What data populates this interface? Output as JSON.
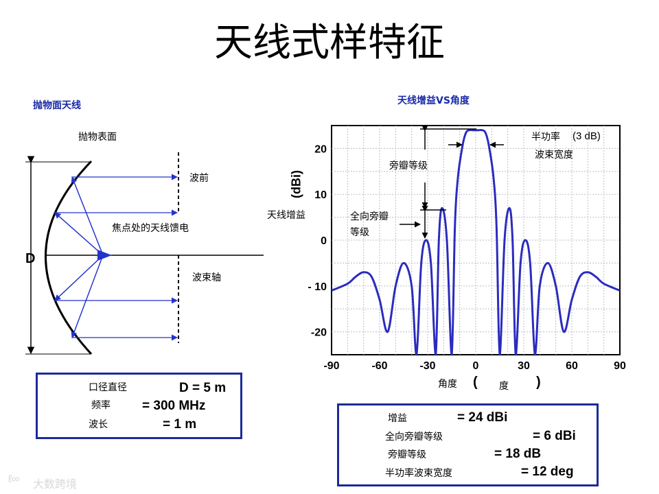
{
  "slide": {
    "title": "天线式样特征"
  },
  "left": {
    "title": "抛物面天线",
    "labels": {
      "surface": "抛物表面",
      "wavefront": "波前",
      "feed": "焦点处的天线馈电",
      "beam_axis": "波束轴",
      "diameter": "D"
    },
    "params": [
      {
        "label": "口径直径",
        "value": "D = 5 m"
      },
      {
        "label": "频率",
        "value": "= 300 MHz"
      },
      {
        "label": "波长",
        "value": "= 1 m"
      }
    ]
  },
  "right": {
    "title": "天线增益VS角度",
    "annotations": {
      "half_power_1": "半功率",
      "half_power_2": "(3 dB)",
      "half_power_3": "波束宽度",
      "sidelobe": "旁瓣等级",
      "omni_1": "全向旁瓣",
      "omni_2": "等级"
    },
    "params": [
      {
        "label": "增益",
        "value": "= 24 dBi"
      },
      {
        "label": "全向旁瓣等级",
        "value": "= 6 dBi"
      },
      {
        "label": "旁瓣等级",
        "value": "= 18 dB"
      },
      {
        "label": "半功率波束宽度",
        "value": "= 12 deg"
      }
    ]
  },
  "chart_data": {
    "type": "line",
    "title": "天线增益VS角度",
    "xlabel_parts": [
      "角度",
      "(",
      "度",
      ")"
    ],
    "ylabel_unit": "(dBi)",
    "ylabel_name": "天线增益",
    "xlim": [
      -90,
      90
    ],
    "ylim": [
      -25,
      25
    ],
    "x_ticks": [
      -90,
      -60,
      -30,
      0,
      30,
      60,
      90
    ],
    "y_ticks": [
      {
        "value": 20,
        "label": "20"
      },
      {
        "value": 10,
        "label": "10"
      },
      {
        "value": 0,
        "label": "0"
      },
      {
        "value": -10,
        "label": "- 10"
      },
      {
        "value": -20,
        "label": "-20"
      }
    ],
    "grid": true,
    "series": [
      {
        "x": [
          -90,
          -80,
          -75,
          -70,
          -65,
          -60,
          -55,
          -50,
          -45,
          -40,
          -37,
          -34,
          -31,
          -28,
          -25,
          -23,
          -21,
          -18,
          -15,
          -13,
          -11,
          -8,
          -6,
          -4,
          -2,
          0,
          2,
          4,
          6,
          8,
          11,
          13,
          15,
          18,
          21,
          23,
          25,
          28,
          31,
          34,
          37,
          40,
          45,
          50,
          55,
          60,
          65,
          70,
          75,
          80,
          90
        ],
        "y": [
          -11,
          -9.5,
          -8,
          -7,
          -8,
          -13,
          -20,
          -10,
          -5,
          -10,
          -25,
          -5,
          0,
          -5,
          -25,
          0,
          7,
          0,
          -25,
          3,
          14,
          21,
          23.5,
          24,
          24,
          24,
          24,
          24,
          23.5,
          21,
          14,
          3,
          -25,
          0,
          7,
          0,
          -25,
          -5,
          0,
          -5,
          -25,
          -10,
          -5,
          -10,
          -20,
          -13,
          -8,
          -7,
          -8,
          -9.5,
          -11
        ]
      }
    ]
  },
  "watermark": "大数跨境"
}
